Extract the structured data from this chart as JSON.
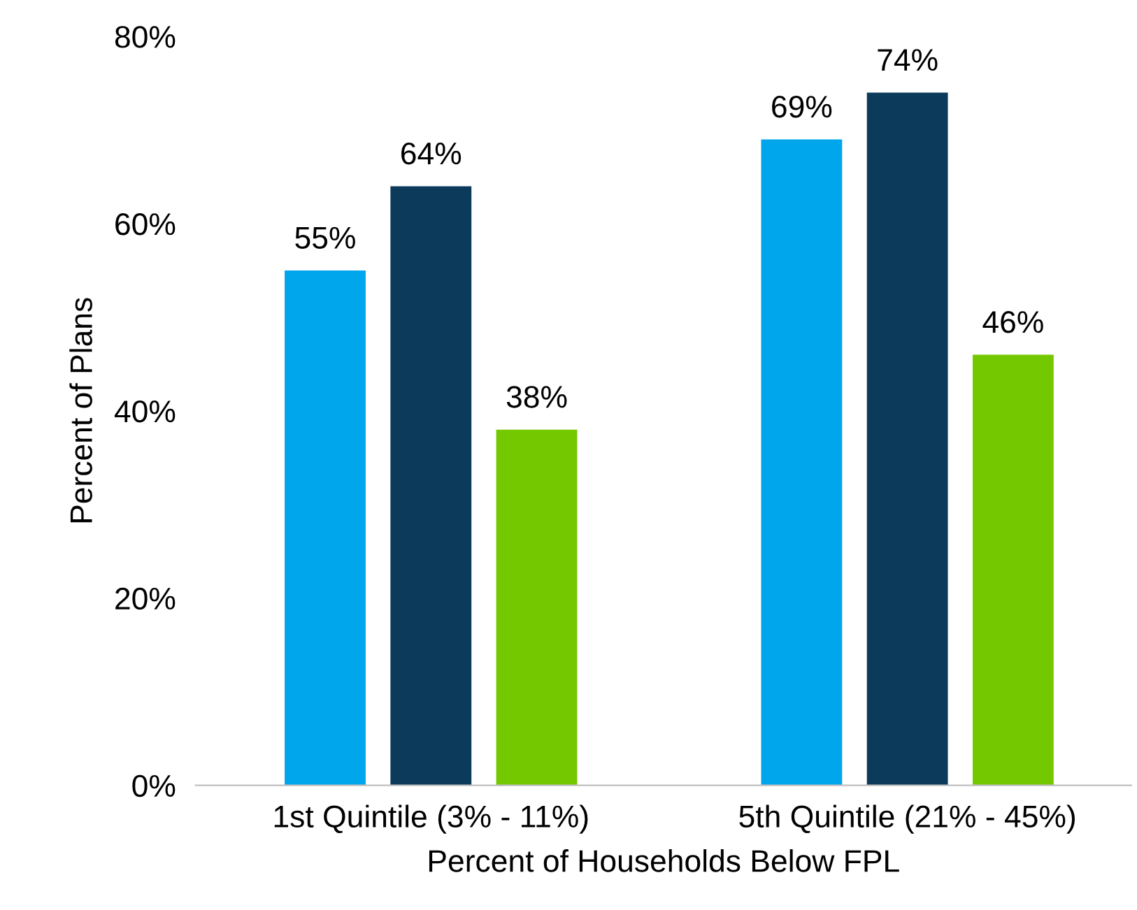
{
  "chart_data": {
    "type": "bar",
    "xlabel": "Percent of Households Below FPL",
    "ylabel": "Percent of Plans",
    "categories": [
      "1st Quintile (3% - 11%)",
      "5th Quintile (21% - 45%)"
    ],
    "series": [
      {
        "color": "#00a6eb",
        "values": [
          55,
          69
        ],
        "value_labels": [
          "55%",
          "69%"
        ]
      },
      {
        "color": "#0b3a5b",
        "values": [
          64,
          74
        ],
        "value_labels": [
          "64%",
          "74%"
        ]
      },
      {
        "color": "#74c800",
        "values": [
          38,
          46
        ],
        "value_labels": [
          "38%",
          "46%"
        ]
      }
    ],
    "ylim": [
      0,
      80
    ],
    "yticks": [
      {
        "value": 0,
        "label": "0%"
      },
      {
        "value": 20,
        "label": "20%"
      },
      {
        "value": 40,
        "label": "40%"
      },
      {
        "value": 60,
        "label": "60%"
      },
      {
        "value": 80,
        "label": "80%"
      }
    ],
    "grid": false
  }
}
